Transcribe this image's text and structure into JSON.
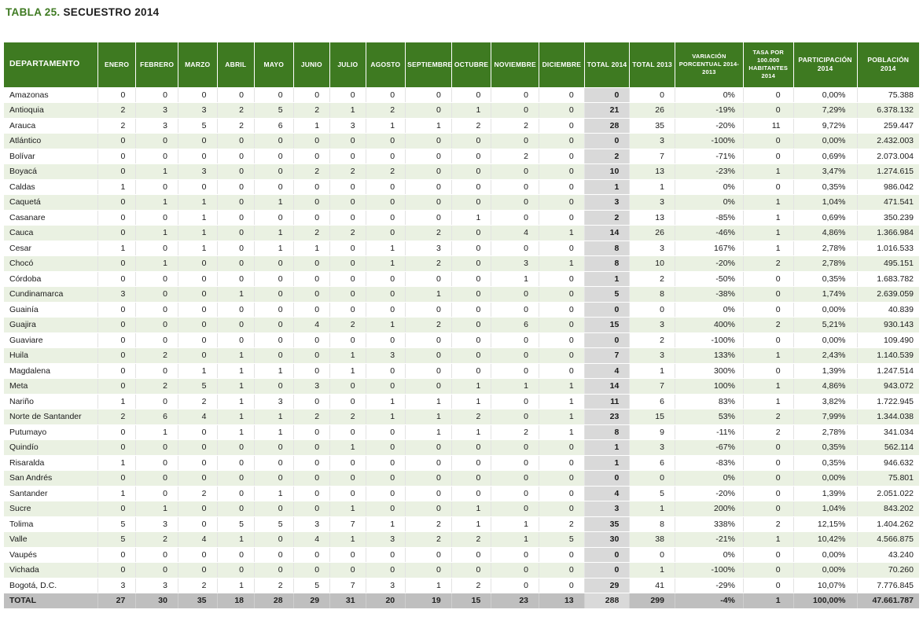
{
  "title": {
    "prefix": "TABLA 25.",
    "text": "SECUESTRO 2014"
  },
  "colors": {
    "title_green": "#3e7a21",
    "header_green": "#3e7a21",
    "row_alt_green": "#eaf1e2",
    "total_column_gray": "#d9d9d9",
    "total_row_gray": "#bfbfbf",
    "text_dark": "#1a1a1a"
  },
  "table": {
    "columns": [
      "DEPARTAMENTO",
      "ENERO",
      "FEBRERO",
      "MARZO",
      "ABRIL",
      "MAYO",
      "JUNIO",
      "JULIO",
      "AGOSTO",
      "SEPTIEMBRE",
      "OCTUBRE",
      "NOVIEMBRE",
      "DICIEMBRE",
      "TOTAL 2014",
      "TOTAL 2013",
      "VARIACIÓN PORCENTUAL 2014-2013",
      "TASA POR 100.000 HABITANTES 2014",
      "PARTICIPACIÓN 2014",
      "POBLACIÓN 2014"
    ],
    "rows": [
      [
        "Amazonas",
        "0",
        "0",
        "0",
        "0",
        "0",
        "0",
        "0",
        "0",
        "0",
        "0",
        "0",
        "0",
        "0",
        "0",
        "0%",
        "0",
        "0,00%",
        "75.388"
      ],
      [
        "Antioquia",
        "2",
        "3",
        "3",
        "2",
        "5",
        "2",
        "1",
        "2",
        "0",
        "1",
        "0",
        "0",
        "21",
        "26",
        "-19%",
        "0",
        "7,29%",
        "6.378.132"
      ],
      [
        "Arauca",
        "2",
        "3",
        "5",
        "2",
        "6",
        "1",
        "3",
        "1",
        "1",
        "2",
        "2",
        "0",
        "28",
        "35",
        "-20%",
        "11",
        "9,72%",
        "259.447"
      ],
      [
        "Atlántico",
        "0",
        "0",
        "0",
        "0",
        "0",
        "0",
        "0",
        "0",
        "0",
        "0",
        "0",
        "0",
        "0",
        "3",
        "-100%",
        "0",
        "0,00%",
        "2.432.003"
      ],
      [
        "Bolívar",
        "0",
        "0",
        "0",
        "0",
        "0",
        "0",
        "0",
        "0",
        "0",
        "0",
        "2",
        "0",
        "2",
        "7",
        "-71%",
        "0",
        "0,69%",
        "2.073.004"
      ],
      [
        "Boyacá",
        "0",
        "1",
        "3",
        "0",
        "0",
        "2",
        "2",
        "2",
        "0",
        "0",
        "0",
        "0",
        "10",
        "13",
        "-23%",
        "1",
        "3,47%",
        "1.274.615"
      ],
      [
        "Caldas",
        "1",
        "0",
        "0",
        "0",
        "0",
        "0",
        "0",
        "0",
        "0",
        "0",
        "0",
        "0",
        "1",
        "1",
        "0%",
        "0",
        "0,35%",
        "986.042"
      ],
      [
        "Caquetá",
        "0",
        "1",
        "1",
        "0",
        "1",
        "0",
        "0",
        "0",
        "0",
        "0",
        "0",
        "0",
        "3",
        "3",
        "0%",
        "1",
        "1,04%",
        "471.541"
      ],
      [
        "Casanare",
        "0",
        "0",
        "1",
        "0",
        "0",
        "0",
        "0",
        "0",
        "0",
        "1",
        "0",
        "0",
        "2",
        "13",
        "-85%",
        "1",
        "0,69%",
        "350.239"
      ],
      [
        "Cauca",
        "0",
        "1",
        "1",
        "0",
        "1",
        "2",
        "2",
        "0",
        "2",
        "0",
        "4",
        "1",
        "14",
        "26",
        "-46%",
        "1",
        "4,86%",
        "1.366.984"
      ],
      [
        "Cesar",
        "1",
        "0",
        "1",
        "0",
        "1",
        "1",
        "0",
        "1",
        "3",
        "0",
        "0",
        "0",
        "8",
        "3",
        "167%",
        "1",
        "2,78%",
        "1.016.533"
      ],
      [
        "Chocó",
        "0",
        "1",
        "0",
        "0",
        "0",
        "0",
        "0",
        "1",
        "2",
        "0",
        "3",
        "1",
        "8",
        "10",
        "-20%",
        "2",
        "2,78%",
        "495.151"
      ],
      [
        "Córdoba",
        "0",
        "0",
        "0",
        "0",
        "0",
        "0",
        "0",
        "0",
        "0",
        "0",
        "1",
        "0",
        "1",
        "2",
        "-50%",
        "0",
        "0,35%",
        "1.683.782"
      ],
      [
        "Cundinamarca",
        "3",
        "0",
        "0",
        "1",
        "0",
        "0",
        "0",
        "0",
        "1",
        "0",
        "0",
        "0",
        "5",
        "8",
        "-38%",
        "0",
        "1,74%",
        "2.639.059"
      ],
      [
        "Guainía",
        "0",
        "0",
        "0",
        "0",
        "0",
        "0",
        "0",
        "0",
        "0",
        "0",
        "0",
        "0",
        "0",
        "0",
        "0%",
        "0",
        "0,00%",
        "40.839"
      ],
      [
        "Guajira",
        "0",
        "0",
        "0",
        "0",
        "0",
        "4",
        "2",
        "1",
        "2",
        "0",
        "6",
        "0",
        "15",
        "3",
        "400%",
        "2",
        "5,21%",
        "930.143"
      ],
      [
        "Guaviare",
        "0",
        "0",
        "0",
        "0",
        "0",
        "0",
        "0",
        "0",
        "0",
        "0",
        "0",
        "0",
        "0",
        "2",
        "-100%",
        "0",
        "0,00%",
        "109.490"
      ],
      [
        "Huila",
        "0",
        "2",
        "0",
        "1",
        "0",
        "0",
        "1",
        "3",
        "0",
        "0",
        "0",
        "0",
        "7",
        "3",
        "133%",
        "1",
        "2,43%",
        "1.140.539"
      ],
      [
        "Magdalena",
        "0",
        "0",
        "1",
        "1",
        "1",
        "0",
        "1",
        "0",
        "0",
        "0",
        "0",
        "0",
        "4",
        "1",
        "300%",
        "0",
        "1,39%",
        "1.247.514"
      ],
      [
        "Meta",
        "0",
        "2",
        "5",
        "1",
        "0",
        "3",
        "0",
        "0",
        "0",
        "1",
        "1",
        "1",
        "14",
        "7",
        "100%",
        "1",
        "4,86%",
        "943.072"
      ],
      [
        "Nariño",
        "1",
        "0",
        "2",
        "1",
        "3",
        "0",
        "0",
        "1",
        "1",
        "1",
        "0",
        "1",
        "11",
        "6",
        "83%",
        "1",
        "3,82%",
        "1.722.945"
      ],
      [
        "Norte de Santander",
        "2",
        "6",
        "4",
        "1",
        "1",
        "2",
        "2",
        "1",
        "1",
        "2",
        "0",
        "1",
        "23",
        "15",
        "53%",
        "2",
        "7,99%",
        "1.344.038"
      ],
      [
        "Putumayo",
        "0",
        "1",
        "0",
        "1",
        "1",
        "0",
        "0",
        "0",
        "1",
        "1",
        "2",
        "1",
        "8",
        "9",
        "-11%",
        "2",
        "2,78%",
        "341.034"
      ],
      [
        "Quindío",
        "0",
        "0",
        "0",
        "0",
        "0",
        "0",
        "1",
        "0",
        "0",
        "0",
        "0",
        "0",
        "1",
        "3",
        "-67%",
        "0",
        "0,35%",
        "562.114"
      ],
      [
        "Risaralda",
        "1",
        "0",
        "0",
        "0",
        "0",
        "0",
        "0",
        "0",
        "0",
        "0",
        "0",
        "0",
        "1",
        "6",
        "-83%",
        "0",
        "0,35%",
        "946.632"
      ],
      [
        "San Andrés",
        "0",
        "0",
        "0",
        "0",
        "0",
        "0",
        "0",
        "0",
        "0",
        "0",
        "0",
        "0",
        "0",
        "0",
        "0%",
        "0",
        "0,00%",
        "75.801"
      ],
      [
        "Santander",
        "1",
        "0",
        "2",
        "0",
        "1",
        "0",
        "0",
        "0",
        "0",
        "0",
        "0",
        "0",
        "4",
        "5",
        "-20%",
        "0",
        "1,39%",
        "2.051.022"
      ],
      [
        "Sucre",
        "0",
        "1",
        "0",
        "0",
        "0",
        "0",
        "1",
        "0",
        "0",
        "1",
        "0",
        "0",
        "3",
        "1",
        "200%",
        "0",
        "1,04%",
        "843.202"
      ],
      [
        "Tolima",
        "5",
        "3",
        "0",
        "5",
        "5",
        "3",
        "7",
        "1",
        "2",
        "1",
        "1",
        "2",
        "35",
        "8",
        "338%",
        "2",
        "12,15%",
        "1.404.262"
      ],
      [
        "Valle",
        "5",
        "2",
        "4",
        "1",
        "0",
        "4",
        "1",
        "3",
        "2",
        "2",
        "1",
        "5",
        "30",
        "38",
        "-21%",
        "1",
        "10,42%",
        "4.566.875"
      ],
      [
        "Vaupés",
        "0",
        "0",
        "0",
        "0",
        "0",
        "0",
        "0",
        "0",
        "0",
        "0",
        "0",
        "0",
        "0",
        "0",
        "0%",
        "0",
        "0,00%",
        "43.240"
      ],
      [
        "Vichada",
        "0",
        "0",
        "0",
        "0",
        "0",
        "0",
        "0",
        "0",
        "0",
        "0",
        "0",
        "0",
        "0",
        "1",
        "-100%",
        "0",
        "0,00%",
        "70.260"
      ],
      [
        "Bogotá, D.C.",
        "3",
        "3",
        "2",
        "1",
        "2",
        "5",
        "7",
        "3",
        "1",
        "2",
        "0",
        "0",
        "29",
        "41",
        "-29%",
        "0",
        "10,07%",
        "7.776.845"
      ]
    ],
    "total_row": [
      "TOTAL",
      "27",
      "30",
      "35",
      "18",
      "28",
      "29",
      "31",
      "20",
      "19",
      "15",
      "23",
      "13",
      "288",
      "299",
      "-4%",
      "1",
      "100,00%",
      "47.661.787"
    ]
  }
}
